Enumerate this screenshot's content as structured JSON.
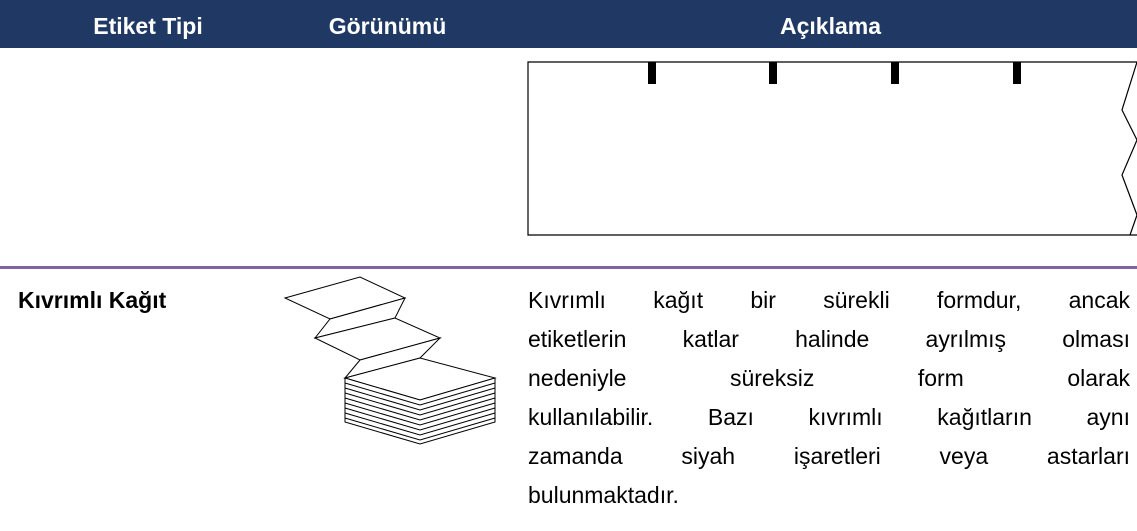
{
  "table": {
    "header": [
      "Etiket Tipi",
      "Görünümü",
      "Açıklama"
    ],
    "rows": [
      {
        "type": "Kıvrımlı Kağıt",
        "description_lines": [
          "Kıvrımlı kağıt bir sürekli formdur, ancak",
          "etiketlerin katlar halinde ayrılmış olması",
          "nedeniyle süreksiz form olarak",
          "kullanılabilir. Bazı kıvrımlı kağıtların aynı",
          "zamanda siyah işaretleri veya astarları",
          "bulunmaktadır."
        ]
      }
    ]
  }
}
